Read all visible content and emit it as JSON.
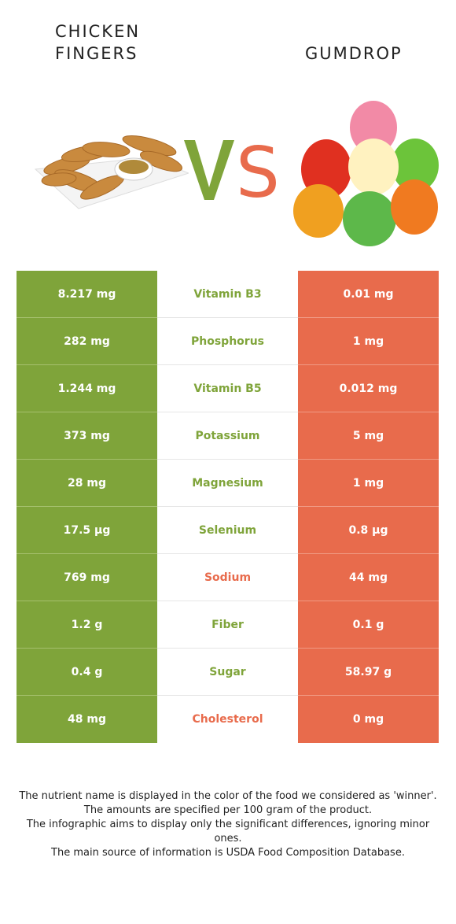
{
  "left_food": {
    "name": "Chicken Fingers",
    "title_lines": [
      "CHICKEN",
      "FINGERS"
    ]
  },
  "right_food": {
    "name": "Gumdrop",
    "title_lines": [
      "GUMDROP"
    ]
  },
  "vs_label": "VS",
  "colors": {
    "left": "#7fa43a",
    "right": "#e86b4c"
  },
  "rows": [
    {
      "nutrient": "Vitamin B3",
      "left": "8.217 mg",
      "right": "0.01 mg",
      "winner": "left"
    },
    {
      "nutrient": "Phosphorus",
      "left": "282 mg",
      "right": "1 mg",
      "winner": "left"
    },
    {
      "nutrient": "Vitamin B5",
      "left": "1.244 mg",
      "right": "0.012 mg",
      "winner": "left"
    },
    {
      "nutrient": "Potassium",
      "left": "373 mg",
      "right": "5 mg",
      "winner": "left"
    },
    {
      "nutrient": "Magnesium",
      "left": "28 mg",
      "right": "1 mg",
      "winner": "left"
    },
    {
      "nutrient": "Selenium",
      "left": "17.5 µg",
      "right": "0.8 µg",
      "winner": "left"
    },
    {
      "nutrient": "Sodium",
      "left": "769 mg",
      "right": "44 mg",
      "winner": "right"
    },
    {
      "nutrient": "Fiber",
      "left": "1.2 g",
      "right": "0.1 g",
      "winner": "left"
    },
    {
      "nutrient": "Sugar",
      "left": "0.4 g",
      "right": "58.97 g",
      "winner": "left"
    },
    {
      "nutrient": "Cholesterol",
      "left": "48 mg",
      "right": "0 mg",
      "winner": "right"
    }
  ],
  "notes": [
    "The nutrient name is displayed in the color of the food we considered as 'winner'.",
    "The amounts are specified per 100 gram of the product.",
    "The infographic aims to display only the significant differences, ignoring minor ones.",
    "The main source of information is USDA Food Composition Database."
  ]
}
